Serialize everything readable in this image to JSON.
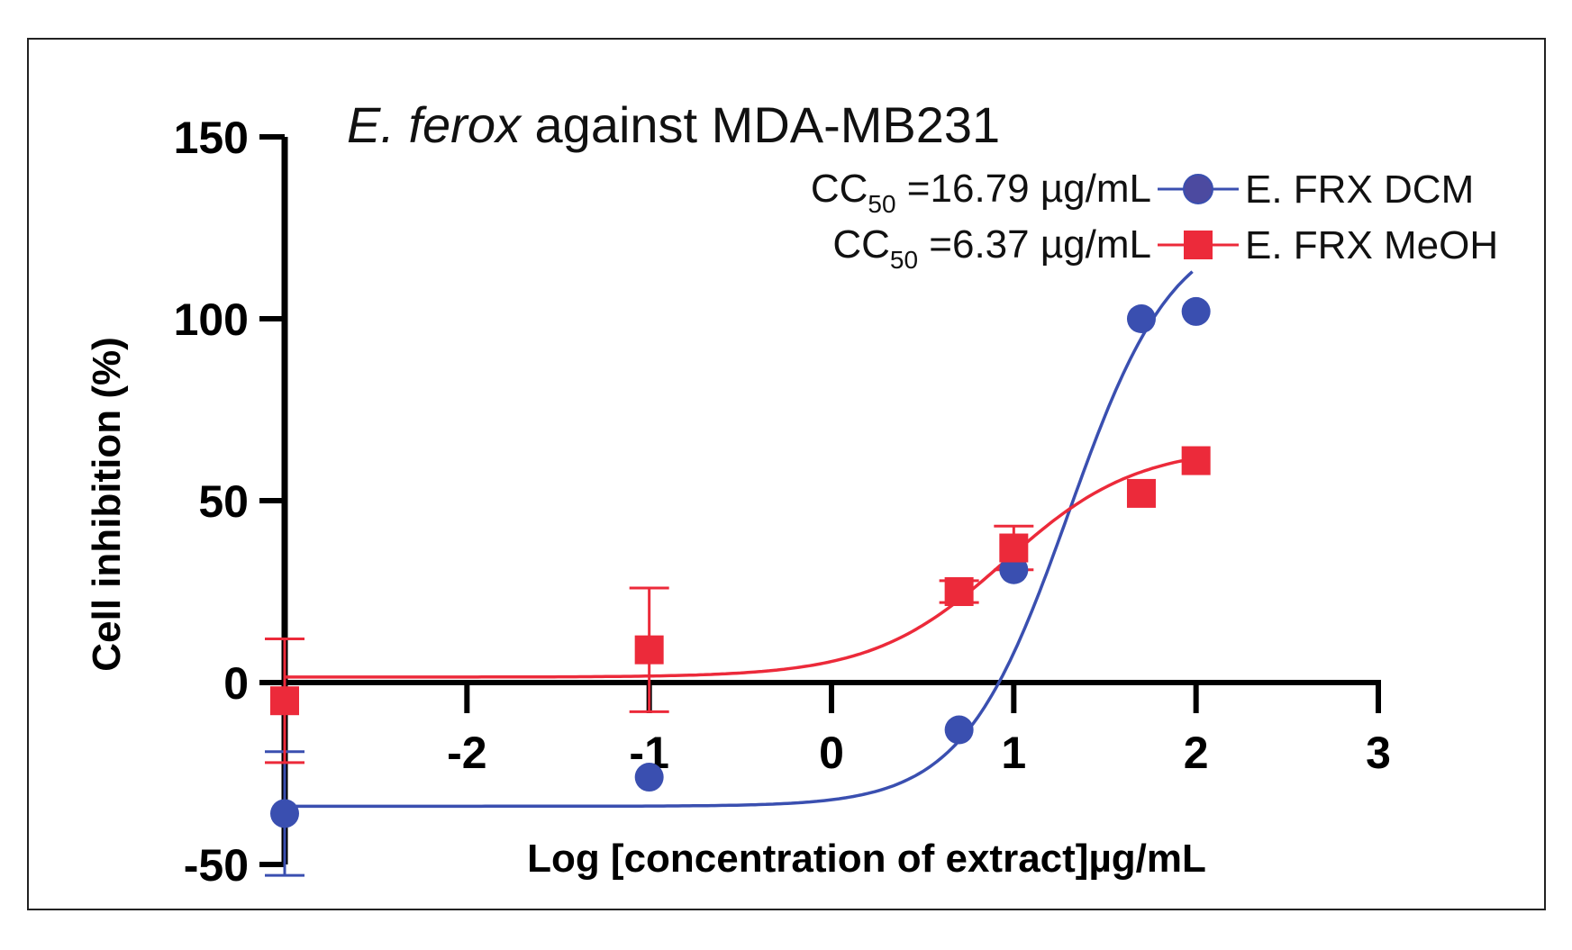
{
  "chart_data": {
    "type": "scatter",
    "title": {
      "italic": "E. ferox",
      "rest": " against MDA-MB231"
    },
    "xlabel": "Log [concentration of extract]µg/mL",
    "ylabel": "Cell inhibition (%)",
    "xlim": [
      -3,
      3
    ],
    "ylim": [
      -50,
      150
    ],
    "xticks": [
      -2,
      -1,
      0,
      1,
      2,
      3
    ],
    "xtick_labels": [
      "-2",
      "-1",
      "0",
      "1",
      "2",
      "3"
    ],
    "yticks": [
      -50,
      0,
      50,
      100,
      150
    ],
    "ytick_labels": [
      "-50",
      "0",
      "50",
      "100",
      "150"
    ],
    "grid": false,
    "legend_position": "top-right",
    "series": [
      {
        "name": "E. FRX DCM",
        "marker": "circle",
        "color": "#3a4fb0",
        "cc50_prefix": "CC",
        "cc50_sub": "50",
        "cc50_value": " =16.79 µg/mL",
        "points": [
          {
            "x": -3,
            "y": -36,
            "err": 17
          },
          {
            "x": -1,
            "y": -26
          },
          {
            "x": 0.7,
            "y": -13
          },
          {
            "x": 1,
            "y": 31
          },
          {
            "x": 1.7,
            "y": 100
          },
          {
            "x": 2,
            "y": 102
          }
        ],
        "fit": {
          "bottom": -34,
          "top": 127,
          "logEC50": 1.3,
          "hill": 1.5,
          "x_end": 1.99
        }
      },
      {
        "name": "E. FRX MeOH",
        "marker": "square",
        "color": "#ec2a3a",
        "cc50_prefix": "CC",
        "cc50_sub": "50",
        "cc50_value": " =6.37 µg/mL",
        "points": [
          {
            "x": -3,
            "y": -5,
            "err": 17
          },
          {
            "x": -1,
            "y": 9,
            "err": 17
          },
          {
            "x": 0.7,
            "y": 25,
            "err": 3
          },
          {
            "x": 1,
            "y": 37,
            "err": 6
          },
          {
            "x": 1.7,
            "y": 52
          },
          {
            "x": 2,
            "y": 61
          }
        ],
        "fit": {
          "bottom": 1.5,
          "top": 65,
          "logEC50": 0.95,
          "hill": 1.2,
          "x_end": 2
        }
      }
    ]
  }
}
